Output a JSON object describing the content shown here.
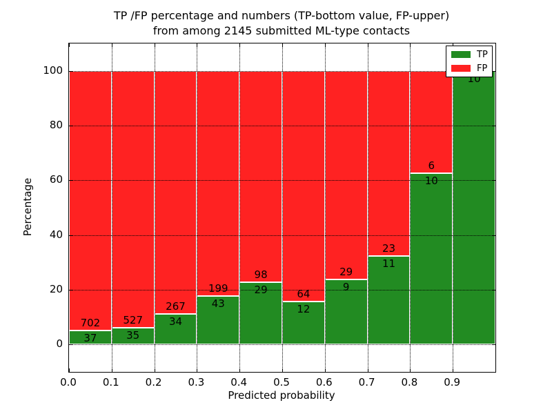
{
  "title": {
    "line1": "TP /FP percentage and numbers (TP-bottom value, FP-upper)",
    "line2": "from among 2145 submitted ML-type contacts"
  },
  "axes": {
    "xlabel": "Predicted probability",
    "ylabel": "Percentage",
    "x_ticks": [
      "0.0",
      "0.1",
      "0.2",
      "0.3",
      "0.4",
      "0.5",
      "0.6",
      "0.7",
      "0.8",
      "0.9"
    ],
    "x_tick_values": [
      0.0,
      0.1,
      0.2,
      0.3,
      0.4,
      0.5,
      0.6,
      0.7,
      0.8,
      0.9
    ],
    "y_ticks": [
      "0",
      "20",
      "40",
      "60",
      "80",
      "100"
    ],
    "y_tick_values": [
      0,
      20,
      40,
      60,
      80,
      100
    ],
    "xlim": [
      0.0,
      1.0
    ],
    "ylim": [
      -10,
      110
    ]
  },
  "legend": {
    "items": [
      {
        "label": "TP",
        "color": "#228b22"
      },
      {
        "label": "FP",
        "color": "#ff2222"
      }
    ],
    "position": "upper right"
  },
  "chart_data": {
    "type": "bar",
    "stacked": true,
    "normalized_to_percent": true,
    "title": "TP /FP percentage and numbers (TP-bottom value, FP-upper) from among 2145 submitted ML-type contacts",
    "xlabel": "Predicted probability",
    "ylabel": "Percentage",
    "xlim": [
      0.0,
      1.0
    ],
    "ylim": [
      -10,
      110
    ],
    "grid": true,
    "total_contacts": 2145,
    "categories": [
      "0.0-0.1",
      "0.1-0.2",
      "0.2-0.3",
      "0.3-0.4",
      "0.4-0.5",
      "0.5-0.6",
      "0.6-0.7",
      "0.7-0.8",
      "0.8-0.9",
      "0.9-1.0"
    ],
    "series": [
      {
        "name": "TP",
        "color": "#228b22",
        "values": [
          37,
          35,
          34,
          43,
          29,
          12,
          9,
          11,
          10,
          10
        ]
      },
      {
        "name": "FP",
        "color": "#ff2222",
        "values": [
          702,
          527,
          267,
          199,
          98,
          64,
          29,
          23,
          6,
          0
        ]
      }
    ],
    "tp_percent": [
      5.0,
      6.2,
      11.3,
      17.8,
      22.8,
      15.8,
      23.7,
      32.4,
      62.5,
      100.0
    ],
    "bar_labels": {
      "tp": [
        "37",
        "35",
        "34",
        "43",
        "29",
        "12",
        "9",
        "11",
        "10",
        "10"
      ],
      "fp": [
        "702",
        "527",
        "267",
        "199",
        "98",
        "64",
        "29",
        "23",
        "6",
        ""
      ]
    }
  }
}
